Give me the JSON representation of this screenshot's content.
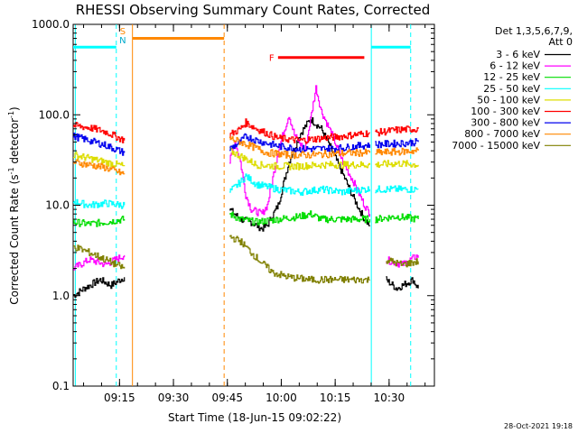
{
  "chart_data": {
    "type": "line",
    "title": "RHESSI Observing Summary Count Rates, Corrected",
    "xlabel": "Start Time (18-Jun-15 09:02:22)",
    "ylabel_main": "Corrected Count Rate (s",
    "ylabel_sup1": "-1",
    "ylabel_mid": " detector",
    "ylabel_sup2": "-1",
    "ylabel_end": ")",
    "yscale": "log",
    "ylim": [
      0.1,
      1000
    ],
    "xlim_minutes": [
      0,
      67
    ],
    "y_ticks": [
      {
        "value": 1000,
        "label": "1000.0"
      },
      {
        "value": 100,
        "label": "100.0"
      },
      {
        "value": 10,
        "label": "10.0"
      },
      {
        "value": 1,
        "label": "1.0"
      },
      {
        "value": 0.1,
        "label": "0.1"
      }
    ],
    "x_ticks": [
      {
        "minute": 8.6,
        "label": "09:15"
      },
      {
        "minute": 18.6,
        "label": "09:30"
      },
      {
        "minute": 28.6,
        "label": "09:45"
      },
      {
        "minute": 38.6,
        "label": "10:00"
      },
      {
        "minute": 48.6,
        "label": "10:15"
      },
      {
        "minute": 58.6,
        "label": "10:30"
      }
    ],
    "legend_header": [
      "Det 1,3,5,6,7,9,",
      "Att 0"
    ],
    "legend_position": "outside-right",
    "series": [
      {
        "name": "3 - 6 keV",
        "color": "#000000",
        "segments": [
          [
            [
              0,
              1.0
            ],
            [
              2,
              1.2
            ],
            [
              5,
              1.5
            ],
            [
              7,
              1.3
            ],
            [
              9.5,
              1.6
            ]
          ],
          [
            [
              29,
              9
            ],
            [
              31,
              7
            ],
            [
              33,
              6.5
            ],
            [
              35,
              5.5
            ],
            [
              36,
              6
            ],
            [
              38,
              10
            ],
            [
              40,
              30
            ],
            [
              42,
              60
            ],
            [
              44,
              90
            ],
            [
              46,
              70
            ],
            [
              48,
              40
            ],
            [
              50,
              22
            ],
            [
              52,
              12
            ],
            [
              54,
              7
            ],
            [
              55,
              6
            ]
          ],
          [
            [
              58,
              1.5
            ],
            [
              60,
              1.2
            ],
            [
              63,
              1.5
            ],
            [
              64,
              1.2
            ]
          ]
        ]
      },
      {
        "name": "6 - 12 keV",
        "color": "#ff00ff",
        "segments": [
          [
            [
              0,
              2.0
            ],
            [
              3,
              2.5
            ],
            [
              6,
              2.2
            ],
            [
              9.5,
              2.8
            ]
          ],
          [
            [
              29,
              30
            ],
            [
              30,
              50
            ],
            [
              31,
              30
            ],
            [
              32,
              13
            ],
            [
              33,
              9
            ],
            [
              35,
              8
            ],
            [
              36,
              10
            ],
            [
              38,
              40
            ],
            [
              40,
              100
            ],
            [
              41,
              60
            ],
            [
              43,
              40
            ],
            [
              45,
              200
            ],
            [
              46,
              110
            ],
            [
              48,
              60
            ],
            [
              50,
              30
            ],
            [
              52,
              18
            ],
            [
              54,
              10
            ],
            [
              55,
              8
            ]
          ],
          [
            [
              58,
              2.5
            ],
            [
              61,
              2.2
            ],
            [
              64,
              2.8
            ]
          ]
        ]
      },
      {
        "name": "12 - 25 keV",
        "color": "#00dd00",
        "segments": [
          [
            [
              0,
              6.5
            ],
            [
              3,
              6.2
            ],
            [
              6,
              6.5
            ],
            [
              9.5,
              7
            ]
          ],
          [
            [
              29,
              8
            ],
            [
              31,
              7
            ],
            [
              34,
              6.5
            ],
            [
              38,
              7
            ],
            [
              42,
              7.5
            ],
            [
              44,
              8
            ],
            [
              46,
              7
            ],
            [
              50,
              7
            ],
            [
              55,
              7
            ]
          ],
          [
            [
              56,
              7
            ],
            [
              60,
              7.5
            ],
            [
              64,
              7
            ]
          ]
        ]
      },
      {
        "name": "25 - 50 keV",
        "color": "#00ffff",
        "segments": [
          [
            [
              0,
              11
            ],
            [
              3,
              10
            ],
            [
              6,
              10.5
            ],
            [
              9.5,
              10
            ]
          ],
          [
            [
              29,
              14
            ],
            [
              31,
              18
            ],
            [
              32,
              21
            ],
            [
              34,
              17
            ],
            [
              38,
              15
            ],
            [
              42,
              14
            ],
            [
              46,
              15
            ],
            [
              50,
              14
            ],
            [
              54,
              15
            ],
            [
              55,
              15
            ]
          ],
          [
            [
              56,
              15
            ],
            [
              60,
              15
            ],
            [
              64,
              15
            ]
          ]
        ]
      },
      {
        "name": "50 - 100 keV",
        "color": "#dddd00",
        "segments": [
          [
            [
              0,
              36
            ],
            [
              3,
              33
            ],
            [
              6,
              30
            ],
            [
              9.5,
              27
            ]
          ],
          [
            [
              29,
              40
            ],
            [
              31,
              35
            ],
            [
              34,
              28
            ],
            [
              38,
              27
            ],
            [
              42,
              27
            ],
            [
              46,
              28
            ],
            [
              50,
              28
            ],
            [
              54,
              28
            ],
            [
              55,
              28
            ]
          ],
          [
            [
              56,
              28
            ],
            [
              60,
              29
            ],
            [
              64,
              28
            ]
          ]
        ]
      },
      {
        "name": "100 - 300 keV",
        "color": "#ff0000",
        "segments": [
          [
            [
              0,
              76
            ],
            [
              3,
              72
            ],
            [
              6,
              65
            ],
            [
              9.5,
              52
            ]
          ],
          [
            [
              29,
              60
            ],
            [
              31,
              70
            ],
            [
              32,
              82
            ],
            [
              34,
              70
            ],
            [
              38,
              55
            ],
            [
              42,
              52
            ],
            [
              46,
              55
            ],
            [
              50,
              58
            ],
            [
              54,
              62
            ],
            [
              55,
              63
            ]
          ],
          [
            [
              56,
              63
            ],
            [
              60,
              68
            ],
            [
              64,
              70
            ]
          ]
        ]
      },
      {
        "name": "300 - 800 keV",
        "color": "#0000ee",
        "segments": [
          [
            [
              0,
              58
            ],
            [
              3,
              52
            ],
            [
              6,
              46
            ],
            [
              9.5,
              38
            ]
          ],
          [
            [
              29,
              42
            ],
            [
              31,
              50
            ],
            [
              32,
              58
            ],
            [
              34,
              52
            ],
            [
              38,
              45
            ],
            [
              42,
              42
            ],
            [
              46,
              42
            ],
            [
              50,
              43
            ],
            [
              54,
              46
            ],
            [
              55,
              47
            ]
          ],
          [
            [
              56,
              47
            ],
            [
              60,
              48
            ],
            [
              64,
              50
            ]
          ]
        ]
      },
      {
        "name": "800 - 7000 keV",
        "color": "#ff8800",
        "segments": [
          [
            [
              0,
              30
            ],
            [
              3,
              28
            ],
            [
              6,
              26
            ],
            [
              9.5,
              22
            ]
          ],
          [
            [
              29,
              55
            ],
            [
              31,
              50
            ],
            [
              33,
              45
            ],
            [
              36,
              38
            ],
            [
              40,
              36
            ],
            [
              44,
              36
            ],
            [
              48,
              37
            ],
            [
              52,
              38
            ],
            [
              55,
              38
            ]
          ],
          [
            [
              56,
              38
            ],
            [
              60,
              39
            ],
            [
              64,
              40
            ]
          ]
        ]
      },
      {
        "name": "7000 - 15000 keV",
        "color": "#808000",
        "segments": [
          [
            [
              0,
              3.5
            ],
            [
              3,
              3.0
            ],
            [
              6,
              2.5
            ],
            [
              9.5,
              2.0
            ]
          ],
          [
            [
              29,
              4.5
            ],
            [
              31,
              4
            ],
            [
              33,
              3
            ],
            [
              35,
              2.3
            ],
            [
              37,
              1.8
            ],
            [
              40,
              1.6
            ],
            [
              44,
              1.5
            ],
            [
              48,
              1.5
            ],
            [
              52,
              1.5
            ],
            [
              55,
              1.5
            ]
          ],
          [
            [
              58,
              2.5
            ],
            [
              61,
              2.2
            ],
            [
              64,
              2.4
            ]
          ]
        ]
      }
    ],
    "annotations": [
      {
        "label": "S",
        "color": "#ff8800",
        "minute": 9.2,
        "value": 850
      },
      {
        "label": "N",
        "color": "#00aacc",
        "minute": 9.2,
        "value": 680
      },
      {
        "label": "F",
        "color": "#ff0000",
        "minute": 36.8,
        "value": 430
      }
    ],
    "flare_bar": {
      "start_minute": 38,
      "end_minute": 54,
      "value": 430,
      "color": "#ff0000"
    },
    "attenuator_bar": {
      "start_minute": 11,
      "end_minute": 28,
      "value": 700,
      "color": "#ff8800"
    },
    "night_bars": [
      {
        "start_minute": 0,
        "end_minute": 8,
        "value": 560,
        "color": "#00ffff"
      },
      {
        "start_minute": 55.3,
        "end_minute": 62.6,
        "value": 560,
        "color": "#00ffff"
      }
    ],
    "vertical_markers": [
      {
        "minute": 0.4,
        "style": "solid",
        "color": "#00ffff"
      },
      {
        "minute": 8.0,
        "style": "dashed",
        "color": "#00ffff"
      },
      {
        "minute": 11.0,
        "style": "solid",
        "color": "#ff8800"
      },
      {
        "minute": 28.0,
        "style": "dashed",
        "color": "#ff8800"
      },
      {
        "minute": 55.3,
        "style": "solid",
        "color": "#00ffff"
      },
      {
        "minute": 62.6,
        "style": "dashed",
        "color": "#00ffff"
      }
    ],
    "footer_timestamp": "28-Oct-2021 19:18"
  }
}
